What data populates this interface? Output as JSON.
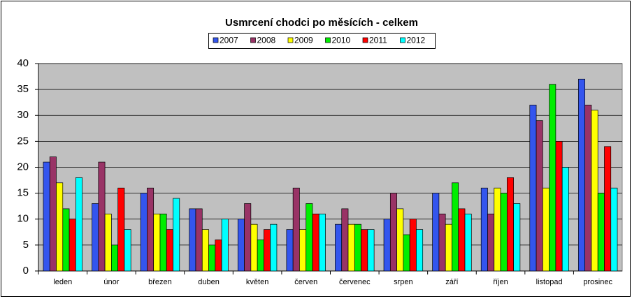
{
  "chart_data": {
    "type": "bar",
    "title": "Usmrcení chodci po měsících - celkem",
    "categories": [
      "leden",
      "únor",
      "březen",
      "duben",
      "květen",
      "červen",
      "červenec",
      "srpen",
      "září",
      "říjen",
      "listopad",
      "prosinec"
    ],
    "series": [
      {
        "name": "2007",
        "color": "#3355ee",
        "values": [
          21,
          13,
          15,
          12,
          10,
          8,
          9,
          10,
          15,
          16,
          32,
          37
        ]
      },
      {
        "name": "2008",
        "color": "#993366",
        "values": [
          22,
          21,
          16,
          12,
          13,
          16,
          12,
          15,
          11,
          11,
          29,
          32
        ]
      },
      {
        "name": "2009",
        "color": "#ffff00",
        "values": [
          17,
          11,
          11,
          8,
          9,
          8,
          9,
          12,
          9,
          16,
          16,
          31
        ]
      },
      {
        "name": "2010",
        "color": "#00ee00",
        "values": [
          12,
          5,
          11,
          5,
          6,
          13,
          9,
          7,
          17,
          15,
          36,
          15
        ]
      },
      {
        "name": "2011",
        "color": "#ff0000",
        "values": [
          10,
          16,
          8,
          6,
          8,
          11,
          8,
          10,
          12,
          18,
          25,
          24
        ]
      },
      {
        "name": "2012",
        "color": "#00ffff",
        "values": [
          18,
          8,
          14,
          10,
          9,
          11,
          8,
          8,
          11,
          13,
          20,
          16
        ]
      }
    ],
    "ylim": [
      0,
      40
    ],
    "yticks": [
      0,
      5,
      10,
      15,
      20,
      25,
      30,
      35,
      40
    ],
    "grid": true
  }
}
